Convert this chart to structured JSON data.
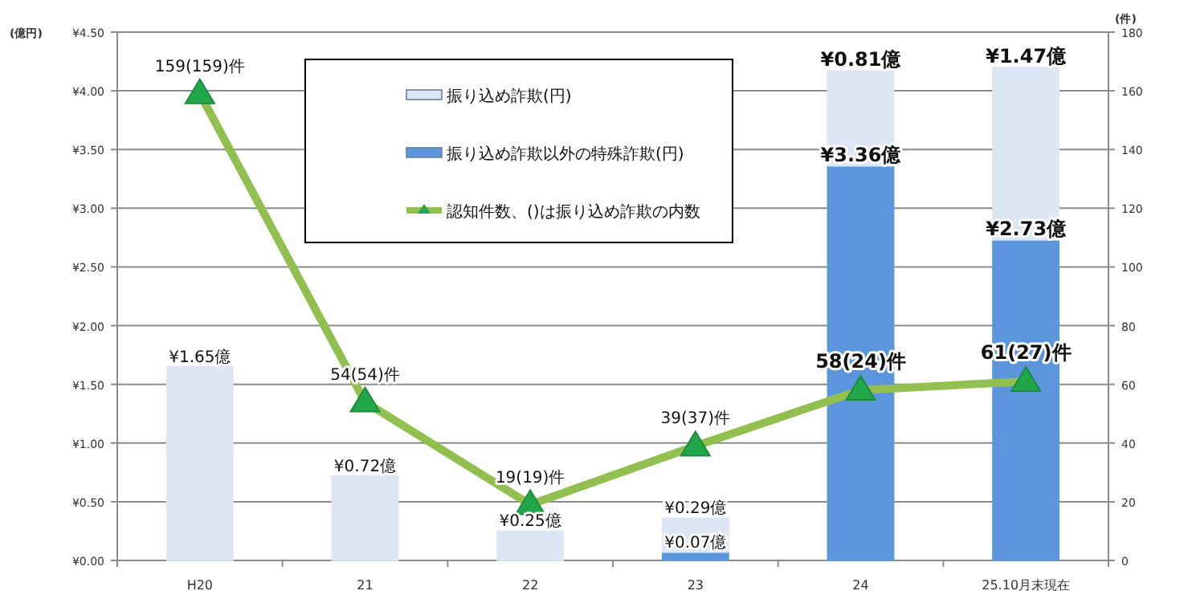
{
  "chart_data": {
    "type": "bar",
    "stacked": true,
    "categories": [
      "H20",
      "21",
      "22",
      "23",
      "24",
      "25.10月末現在"
    ],
    "ylabel": "(億円)",
    "y2label": "(件)",
    "ylim": [
      0,
      4.5
    ],
    "yticks": [
      {
        "value": 0,
        "label": "¥0.00"
      },
      {
        "value": 0.5,
        "label": "¥0.50"
      },
      {
        "value": 1,
        "label": "¥1.00"
      },
      {
        "value": 1.5,
        "label": "¥1.50"
      },
      {
        "value": 2,
        "label": "¥2.00"
      },
      {
        "value": 2.5,
        "label": "¥2.50"
      },
      {
        "value": 3,
        "label": "¥3.00"
      },
      {
        "value": 3.5,
        "label": "¥3.50"
      },
      {
        "value": 4,
        "label": "¥4.00"
      },
      {
        "value": 4.5,
        "label": "¥4.50"
      }
    ],
    "y2lim": [
      0,
      180
    ],
    "y2ticks": [
      0,
      20,
      40,
      60,
      80,
      100,
      120,
      140,
      160,
      180
    ],
    "grid": "y",
    "legend": "top",
    "series": [
      {
        "name": "振り込め詐欺以外の特殊詐欺(円)",
        "color": "#5b96dc",
        "values": [
          null,
          null,
          null,
          0.07,
          3.36,
          2.73
        ],
        "value_labels": [
          null,
          null,
          null,
          "¥0.07億",
          "¥3.36億",
          "¥2.73億"
        ]
      },
      {
        "name": "振り込め詐欺(円)",
        "color": "#dce6f5",
        "values": [
          1.65,
          0.72,
          0.25,
          0.29,
          0.81,
          1.47
        ],
        "value_labels": [
          "¥1.65億",
          "¥0.72億",
          "¥0.25億",
          "¥0.29億",
          "¥0.81億",
          "¥1.47億"
        ]
      },
      {
        "name": "認知件数、()は振り込め詐欺の内数",
        "type": "line",
        "axis": "y2",
        "color": "#92c050",
        "marker": "triangle",
        "values": [
          159,
          54,
          19,
          39,
          58,
          61
        ],
        "value_labels": [
          "159(159)件",
          "54(54)件",
          "19(19)件",
          "39(37)件",
          "58(24)件",
          "61(27)件"
        ]
      }
    ]
  }
}
